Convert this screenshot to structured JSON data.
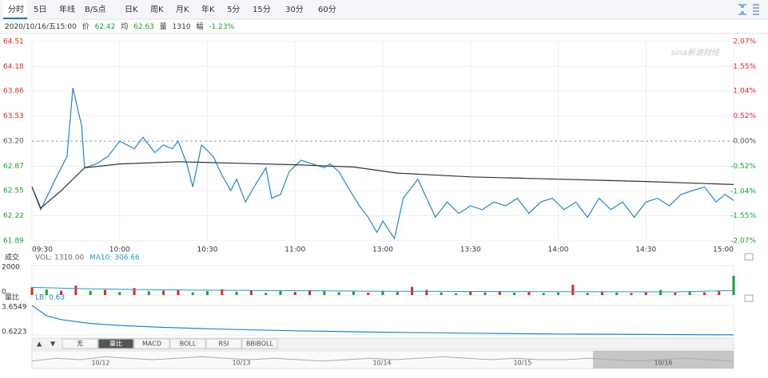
{
  "toolbar": {
    "tabs": [
      "分时",
      "5日",
      "年线",
      "B/S点",
      "日K",
      "周K",
      "月K",
      "年K",
      "5分",
      "15分",
      "30分",
      "60分"
    ]
  },
  "info": {
    "datetime": "2020/10/16/五15:00",
    "price_label": "价",
    "price": "62.42",
    "avg_label": "均",
    "avg": "62.63",
    "vol_label": "量",
    "vol": "1310",
    "chg_label": "幅",
    "chg": "-1.23%"
  },
  "watermark": "sina新浪财经",
  "chart_data": [
    {
      "type": "line",
      "xlim": [
        0,
        240
      ],
      "xticks": [
        {
          "value": 0,
          "label": "09:30"
        },
        {
          "value": 30,
          "label": "10:00"
        },
        {
          "value": 60,
          "label": "10:30"
        },
        {
          "value": 90,
          "label": "11:00"
        },
        {
          "value": 120,
          "label": "13:00"
        },
        {
          "value": 150,
          "label": "13:30"
        },
        {
          "value": 180,
          "label": "14:00"
        },
        {
          "value": 210,
          "label": "14:30"
        },
        {
          "value": 240,
          "label": "15:00"
        }
      ],
      "ylim": [
        61.89,
        64.51
      ],
      "yticks": [
        64.51,
        64.18,
        63.86,
        63.53,
        {
          "value": 63.2,
          "label": "63.20"
        },
        62.87,
        62.55,
        62.22,
        61.89
      ],
      "y2lim": [
        -2.07,
        2.07
      ],
      "y2ticks": [
        {
          "value": 2.07,
          "label": "2.07%"
        },
        {
          "value": 1.55,
          "label": "1.55%"
        },
        {
          "value": 1.04,
          "label": "1.04%"
        },
        {
          "value": 0.52,
          "label": "0.52%"
        },
        {
          "value": 0,
          "label": "0.00%"
        },
        {
          "value": -0.52,
          "label": "-0.52%"
        },
        {
          "value": -1.04,
          "label": "-1.04%"
        },
        {
          "value": -1.55,
          "label": "-1.55%"
        },
        {
          "value": -2.07,
          "label": "-2.07%"
        }
      ],
      "grid": true,
      "series": [
        {
          "name": "价",
          "color": "#1e88c8",
          "x": [
            0,
            3,
            8,
            12,
            14,
            17,
            18,
            22,
            26,
            30,
            35,
            38,
            42,
            45,
            48,
            50,
            53,
            55,
            58,
            62,
            65,
            68,
            70,
            73,
            76,
            80,
            82,
            85,
            88,
            92,
            96,
            100,
            102,
            105,
            108,
            112,
            115,
            118,
            120,
            124,
            127,
            132,
            135,
            138,
            142,
            146,
            150,
            154,
            158,
            162,
            166,
            170,
            174,
            178,
            182,
            186,
            190,
            194,
            198,
            202,
            206,
            210,
            214,
            218,
            222,
            226,
            230,
            234,
            237,
            240
          ],
          "values": [
            62.6,
            62.3,
            62.7,
            63.0,
            63.9,
            63.4,
            62.85,
            62.9,
            63.0,
            63.2,
            63.1,
            63.25,
            63.05,
            63.15,
            63.1,
            63.2,
            62.9,
            62.6,
            63.15,
            63.0,
            62.75,
            62.55,
            62.7,
            62.4,
            62.6,
            62.85,
            62.45,
            62.5,
            62.8,
            62.95,
            62.9,
            62.85,
            62.9,
            62.8,
            62.6,
            62.35,
            62.2,
            62.0,
            62.15,
            61.92,
            62.45,
            62.7,
            62.45,
            62.2,
            62.4,
            62.25,
            62.35,
            62.3,
            62.4,
            62.35,
            62.45,
            62.25,
            62.4,
            62.45,
            62.3,
            62.4,
            62.2,
            62.45,
            62.3,
            62.4,
            62.2,
            62.4,
            62.45,
            62.35,
            62.5,
            62.55,
            62.6,
            62.4,
            62.5,
            62.42
          ]
        },
        {
          "name": "均",
          "color": "#333333",
          "x": [
            0,
            3,
            10,
            18,
            30,
            50,
            70,
            90,
            110,
            125,
            150,
            180,
            210,
            240
          ],
          "values": [
            62.6,
            62.32,
            62.55,
            62.85,
            62.9,
            62.93,
            62.91,
            62.89,
            62.86,
            62.78,
            62.73,
            62.7,
            62.67,
            62.63
          ]
        }
      ]
    },
    {
      "type": "bar",
      "title": "成交",
      "xlim": [
        0,
        240
      ],
      "ylim": [
        0,
        2000
      ],
      "yticks": [
        0,
        2000
      ],
      "series": [
        {
          "name": "VOL: 1310.00",
          "color": "#666666",
          "x": [
            0,
            5,
            10,
            15,
            20,
            25,
            30,
            35,
            40,
            45,
            50,
            55,
            60,
            65,
            70,
            75,
            80,
            85,
            90,
            95,
            100,
            105,
            110,
            115,
            120,
            125,
            130,
            135,
            140,
            145,
            150,
            155,
            160,
            165,
            170,
            175,
            180,
            185,
            190,
            195,
            200,
            205,
            210,
            215,
            220,
            225,
            230,
            235,
            240
          ],
          "values": [
            520,
            380,
            300,
            640,
            290,
            350,
            210,
            480,
            260,
            300,
            340,
            180,
            260,
            400,
            220,
            300,
            150,
            280,
            210,
            330,
            260,
            190,
            240,
            160,
            300,
            210,
            560,
            350,
            180,
            120,
            220,
            180,
            260,
            160,
            200,
            140,
            180,
            700,
            150,
            200,
            160,
            130,
            180,
            350,
            160,
            220,
            180,
            260,
            1310
          ],
          "colors": [
            "#e0271f",
            "#1aa035",
            "#e0271f",
            "#e0271f",
            "#1aa035",
            "#e0271f",
            "#1aa035",
            "#e0271f",
            "#1aa035",
            "#e0271f",
            "#e0271f",
            "#1aa035",
            "#1aa035",
            "#e0271f",
            "#1aa035",
            "#e0271f",
            "#1aa035",
            "#1aa035",
            "#e0271f",
            "#e0271f",
            "#1aa035",
            "#1aa035",
            "#1aa035",
            "#e0271f",
            "#1aa035",
            "#1aa035",
            "#e0271f",
            "#e0271f",
            "#1aa035",
            "#1aa035",
            "#e0271f",
            "#1aa035",
            "#e0271f",
            "#1aa035",
            "#e0271f",
            "#1aa035",
            "#1aa035",
            "#e0271f",
            "#1aa035",
            "#e0271f",
            "#1aa035",
            "#e0271f",
            "#e0271f",
            "#1aa035",
            "#e0271f",
            "#1aa035",
            "#e0271f",
            "#e0271f",
            "#1aa035"
          ]
        },
        {
          "name": "MA10: 306.66",
          "color": "#1aa0c0",
          "x": [
            0,
            20,
            40,
            60,
            80,
            100,
            120,
            140,
            160,
            180,
            200,
            220,
            240
          ],
          "values": [
            520,
            420,
            360,
            330,
            300,
            280,
            260,
            250,
            240,
            230,
            220,
            215,
            306.66
          ]
        }
      ]
    },
    {
      "type": "line",
      "title": "量比",
      "xlim": [
        0,
        240
      ],
      "ylim": [
        0.6223,
        3.6549
      ],
      "yticks": [
        0.6223,
        3.6549
      ],
      "series": [
        {
          "name": "LB: 0.63",
          "color": "#1e88c8",
          "x": [
            0,
            5,
            10,
            20,
            30,
            45,
            60,
            90,
            120,
            150,
            180,
            210,
            240
          ],
          "values": [
            3.6549,
            2.6,
            2.2,
            1.8,
            1.6,
            1.4,
            1.25,
            1.05,
            0.9,
            0.8,
            0.72,
            0.67,
            0.63
          ]
        }
      ]
    }
  ],
  "bottom_tabs": [
    "▲",
    "▼",
    "无",
    "量比",
    "MACD",
    "BOLL",
    "RSI",
    "BBIBOLL"
  ],
  "navigator": {
    "dates": [
      "10/12",
      "10/13",
      "10/14",
      "10/15",
      "10/16"
    ],
    "ylim": [
      0,
      10
    ],
    "values": [
      4,
      6,
      5,
      7,
      6,
      5,
      6,
      7,
      6,
      5,
      6,
      5,
      4,
      5,
      6,
      5,
      6,
      7,
      6,
      5,
      6,
      5,
      5,
      6,
      5,
      4,
      5,
      6,
      5,
      4
    ]
  }
}
